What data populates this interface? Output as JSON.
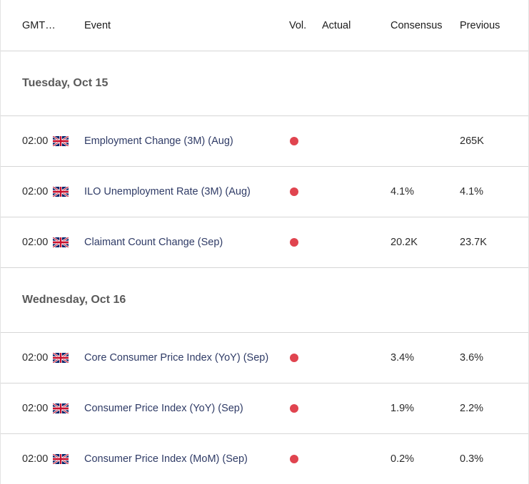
{
  "columns": {
    "time": "GMT…",
    "event": "Event",
    "volatility": "Vol.",
    "actual": "Actual",
    "consensus": "Consensus",
    "previous": "Previous"
  },
  "colors": {
    "volatility_high": "#e0444f",
    "event_text": "#2f3b66"
  },
  "days": [
    {
      "label": "Tuesday, Oct 15",
      "events": [
        {
          "time": "02:00",
          "flag_icon": "uk-flag-icon",
          "event": "Employment Change (3M) (Aug)",
          "volatility": "high",
          "actual": "",
          "consensus": "",
          "previous": "265K"
        },
        {
          "time": "02:00",
          "flag_icon": "uk-flag-icon",
          "event": "ILO Unemployment Rate (3M) (Aug)",
          "volatility": "high",
          "actual": "",
          "consensus": "4.1%",
          "previous": "4.1%"
        },
        {
          "time": "02:00",
          "flag_icon": "uk-flag-icon",
          "event": "Claimant Count Change (Sep)",
          "volatility": "high",
          "actual": "",
          "consensus": "20.2K",
          "previous": "23.7K"
        }
      ]
    },
    {
      "label": "Wednesday, Oct 16",
      "events": [
        {
          "time": "02:00",
          "flag_icon": "uk-flag-icon",
          "event": "Core Consumer Price Index (YoY) (Sep)",
          "volatility": "high",
          "actual": "",
          "consensus": "3.4%",
          "previous": "3.6%"
        },
        {
          "time": "02:00",
          "flag_icon": "uk-flag-icon",
          "event": "Consumer Price Index (YoY) (Sep)",
          "volatility": "high",
          "actual": "",
          "consensus": "1.9%",
          "previous": "2.2%"
        },
        {
          "time": "02:00",
          "flag_icon": "uk-flag-icon",
          "event": "Consumer Price Index (MoM) (Sep)",
          "volatility": "high",
          "actual": "",
          "consensus": "0.2%",
          "previous": "0.3%"
        }
      ]
    }
  ]
}
